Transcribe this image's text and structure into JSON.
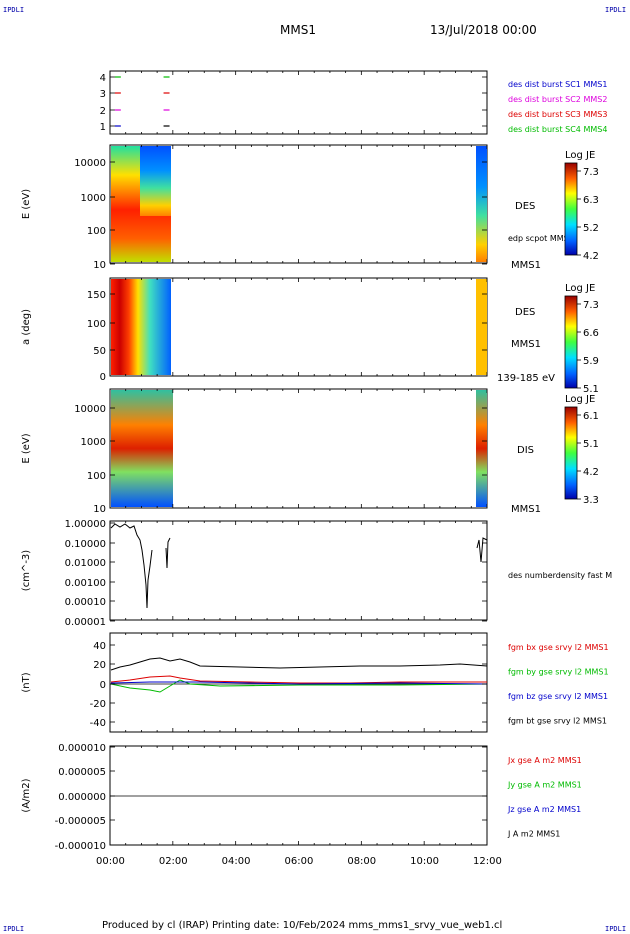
{
  "header": {
    "corner_tl": "IPDLI",
    "corner_tr": "IPDLI",
    "corner_bl": "IPDLI",
    "corner_br": "IPDLI",
    "title": "MMS1",
    "date": "13/Jul/2018 00:00",
    "footer": "Produced by cl (IRAP)   Printing date: 10/Feb/2024   mms_mms1_srvy_vue_web1.cl"
  },
  "colors": {
    "blue": "#0000cc",
    "red": "#dd0000",
    "magenta": "#dd00dd",
    "green": "#00bb00",
    "black": "#000000"
  },
  "chart_data": [
    {
      "type": "line",
      "name": "availability",
      "yticks": [
        "1",
        "2",
        "3",
        "4"
      ],
      "legend": [
        {
          "label": "des dist burst SC1 MMS1",
          "color": "#0000cc"
        },
        {
          "label": "des dist burst SC2 MMS2",
          "color": "#dd00dd"
        },
        {
          "label": "des dist burst SC3 MMS3",
          "color": "#dd0000"
        },
        {
          "label": "des dist burst SC4 MMS4",
          "color": "#00bb00"
        }
      ],
      "x_hours": [
        0.25,
        1.8
      ]
    },
    {
      "type": "heatmap",
      "name": "des-energy",
      "ylabel": "E (eV)",
      "yticks": [
        "10000",
        "1000",
        "100",
        "10"
      ],
      "labels": [
        "DES",
        "edp scpot MMS1",
        "MMS1"
      ],
      "colorbar": {
        "title": "Log JE",
        "ticks": [
          "7.3",
          "6.3",
          "5.2",
          "4.2"
        ]
      }
    },
    {
      "type": "heatmap",
      "name": "des-pitch",
      "ylabel": "a (deg)",
      "yticks": [
        "150",
        "100",
        "50",
        "0"
      ],
      "labels": [
        "DES",
        "MMS1",
        "139-185 eV"
      ],
      "colorbar": {
        "title": "Log JE",
        "ticks": [
          "7.3",
          "6.6",
          "5.9",
          "5.1"
        ]
      }
    },
    {
      "type": "heatmap",
      "name": "dis-energy",
      "ylabel": "E (eV)",
      "yticks": [
        "10000",
        "1000",
        "100",
        "10"
      ],
      "labels": [
        "DIS",
        "MMS1"
      ],
      "colorbar": {
        "title": "Log JE",
        "ticks": [
          "6.1",
          "5.1",
          "4.2",
          "3.3"
        ]
      }
    },
    {
      "type": "line",
      "name": "density",
      "ylabel": "(cm^-3)",
      "yticks": [
        "1.00000",
        "0.10000",
        "0.01000",
        "0.00100",
        "0.00010",
        "0.00001"
      ],
      "legend": [
        {
          "label": "des numberdensity fast M",
          "color": "#000000"
        }
      ]
    },
    {
      "type": "line",
      "name": "magnetic-field",
      "ylabel": "(nT)",
      "yticks": [
        "40",
        "20",
        "0",
        "-20",
        "-40"
      ],
      "ylim": [
        -50,
        50
      ],
      "legend": [
        {
          "label": "fgm bx gse srvy l2 MMS1",
          "color": "#dd0000"
        },
        {
          "label": "fgm by gse srvy l2 MMS1",
          "color": "#00bb00"
        },
        {
          "label": "fgm bz gse srvy l2 MMS1",
          "color": "#0000cc"
        },
        {
          "label": "fgm bt gse srvy l2 MMS1",
          "color": "#000000"
        }
      ]
    },
    {
      "type": "line",
      "name": "current-density",
      "ylabel": "(A/m2)",
      "yticks": [
        "0.000010",
        "0.000005",
        "0.000000",
        "-0.000005",
        "-0.000010"
      ],
      "ylim": [
        -1e-05,
        1e-05
      ],
      "legend": [
        {
          "label": "Jx gse A m2 MMS1",
          "color": "#dd0000"
        },
        {
          "label": "Jy gse A m2 MMS1",
          "color": "#00bb00"
        },
        {
          "label": "Jz gse A m2 MMS1",
          "color": "#0000cc"
        },
        {
          "label": "J A m2 MMS1",
          "color": "#000000"
        }
      ]
    }
  ],
  "xaxis": {
    "ticks": [
      "00:00",
      "02:00",
      "04:00",
      "06:00",
      "08:00",
      "10:00",
      "12:00"
    ],
    "range_hours": [
      0,
      12
    ]
  }
}
